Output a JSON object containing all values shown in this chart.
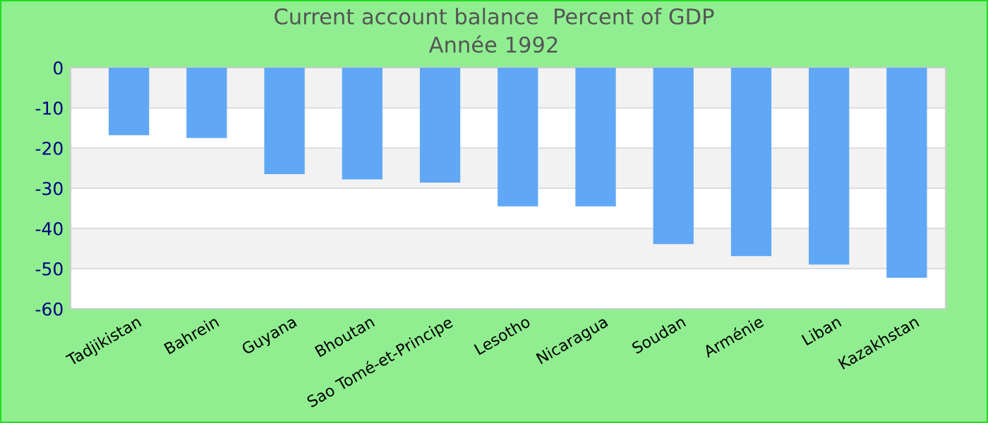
{
  "chart_data": {
    "type": "bar",
    "title": "Current account balance  Percent of GDP",
    "subtitle": "Année 1992",
    "categories": [
      "Tadjikistan",
      "Bahrein",
      "Guyana",
      "Bhoutan",
      "Sao Tomé-et-Principe",
      "Lesotho",
      "Nicaragua",
      "Soudan",
      "Arménie",
      "Liban",
      "Kazakhstan"
    ],
    "values": [
      -16.8,
      -17.5,
      -26.5,
      -27.8,
      -28.6,
      -34.5,
      -34.5,
      -43.9,
      -46.9,
      -49,
      -52.3
    ],
    "color": "#60a8f5",
    "ylim": [
      -60,
      0
    ],
    "yticks": [
      -60,
      -50,
      -40,
      -30,
      -20,
      -10,
      0
    ],
    "grid": "y"
  }
}
